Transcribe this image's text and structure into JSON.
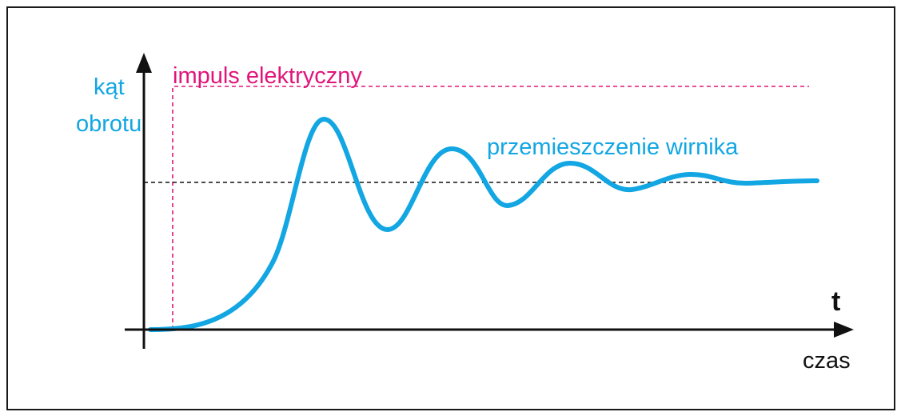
{
  "diagram": {
    "y_axis_label_line1": "kąt",
    "y_axis_label_line2": "obrotu",
    "x_axis_symbol": "t",
    "x_axis_label": "czas",
    "impulse_label": "impuls elektryczny",
    "response_label": "przemieszczenie wirnika"
  },
  "colors": {
    "axis": "#111111",
    "impulse": "#e0157a",
    "response": "#12a6e3",
    "reference": "#111111"
  }
}
